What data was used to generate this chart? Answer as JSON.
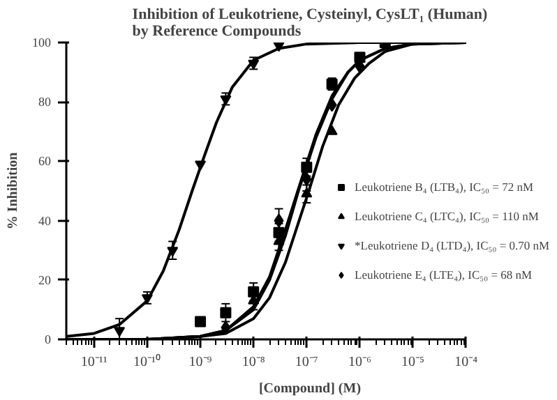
{
  "chart_data": {
    "type": "scatter",
    "title": "Inhibition of Leukotriene, Cysteinyl, CysLT₁ (Human)\nby Reference Compounds",
    "xlabel": "[Compound] (M)",
    "ylabel": "% Inhibition",
    "log": "x",
    "grid": false,
    "legend": "right",
    "xlim": [
      3e-12,
      0.0001
    ],
    "xticks": [
      {
        "value": 1e-11,
        "label": "10⁻¹¹"
      },
      {
        "value": 1e-10,
        "label": "10⁻¹⁰"
      },
      {
        "value": 1e-09,
        "label": "10⁻⁹"
      },
      {
        "value": 1e-08,
        "label": "10⁻⁸"
      },
      {
        "value": 1e-07,
        "label": "10⁻⁷"
      },
      {
        "value": 1e-06,
        "label": "10⁻⁶"
      },
      {
        "value": 1e-05,
        "label": "10⁻⁵"
      },
      {
        "value": 0.0001,
        "label": "10⁻⁴"
      }
    ],
    "ylim": [
      0,
      100
    ],
    "yticks": [
      0,
      20,
      40,
      60,
      80,
      100
    ],
    "series": [
      {
        "name": "Leukotriene B₄ (LTB₄), IC₅₀ = 72 nM",
        "marker": "square",
        "color": "#000000",
        "x": [
          1e-09,
          3e-09,
          1e-08,
          3e-08,
          1e-07,
          3e-07,
          1e-06,
          3e-06
        ],
        "values": [
          6,
          9,
          16,
          36,
          58,
          86,
          95,
          100
        ],
        "errors": [
          null,
          3,
          3,
          3,
          3,
          2,
          null,
          null
        ]
      },
      {
        "name": "Leukotriene C₄ (LTC₄), IC₅₀ = 110 nM",
        "marker": "triangle",
        "color": "#000000",
        "x": [
          1e-08,
          3e-08,
          1e-07,
          3e-07
        ],
        "values": [
          13,
          33,
          49,
          70
        ],
        "errors": [
          3,
          3,
          3,
          null
        ]
      },
      {
        "name": "*Leukotriene D₄ (LTD₄), IC₅₀ = 0.70 nM",
        "marker": "triangle_down",
        "color": "#000000",
        "x": [
          3e-11,
          1e-10,
          3e-10,
          1e-09,
          3e-09,
          1e-08,
          3e-08
        ],
        "values": [
          3,
          14,
          30,
          59,
          81,
          93,
          99
        ],
        "errors": [
          4,
          2,
          3,
          null,
          2,
          2,
          null
        ]
      },
      {
        "name": "Leukotriene E₄ (LTE₄), IC₅₀ = 68 nM",
        "marker": "diamond",
        "color": "#000000",
        "x": [
          3e-09,
          3e-08,
          1e-07,
          3e-07,
          1e-06
        ],
        "values": [
          4,
          40,
          54,
          79,
          92
        ],
        "errors": [
          null,
          4,
          4,
          null,
          null
        ]
      },
      {
        "type": "line",
        "color": "#000000",
        "x": [
          3e-12,
          1e-10,
          1e-09,
          3e-09,
          1e-08,
          2e-08,
          4e-08,
          7e-08,
          1.5e-07,
          3e-07,
          6e-07,
          1e-06,
          3e-06,
          1e-05,
          0.0001
        ],
        "values": [
          0,
          0,
          1,
          3,
          10,
          20,
          35,
          50,
          68,
          81,
          90,
          94,
          98,
          99.5,
          100
        ]
      },
      {
        "type": "line",
        "color": "#000000",
        "x": [
          1e-11,
          1e-10,
          1e-09,
          3e-09,
          1e-08,
          2e-08,
          4e-08,
          1.1e-07,
          2e-07,
          4e-07,
          8e-07,
          1.5e-06,
          3e-06,
          1e-05,
          0.0001
        ],
        "values": [
          0,
          0,
          1,
          2,
          7,
          14,
          26,
          50,
          65,
          79,
          88,
          93,
          97,
          99.5,
          100
        ]
      },
      {
        "type": "line",
        "color": "#000000",
        "x": [
          3e-12,
          1e-11,
          3e-11,
          1e-10,
          2e-10,
          4e-10,
          7e-10,
          1.2e-09,
          2e-09,
          4e-09,
          1e-08,
          3e-08,
          1e-07,
          1e-06,
          0.0001
        ],
        "values": [
          1,
          2,
          5,
          13,
          23,
          37,
          50,
          62,
          73,
          85,
          94,
          98,
          99.5,
          100,
          100
        ]
      },
      {
        "type": "line",
        "color": "#000000",
        "x": [
          3e-11,
          1e-10,
          1e-09,
          3e-09,
          1e-08,
          2e-08,
          4e-08,
          6.8e-08,
          1.5e-07,
          3e-07,
          6e-07,
          1e-06,
          3e-06,
          1e-05,
          0.0001
        ],
        "values": [
          0,
          0,
          1,
          3,
          11,
          21,
          37,
          50,
          69,
          82,
          90,
          94,
          98,
          99.5,
          100
        ]
      }
    ]
  }
}
